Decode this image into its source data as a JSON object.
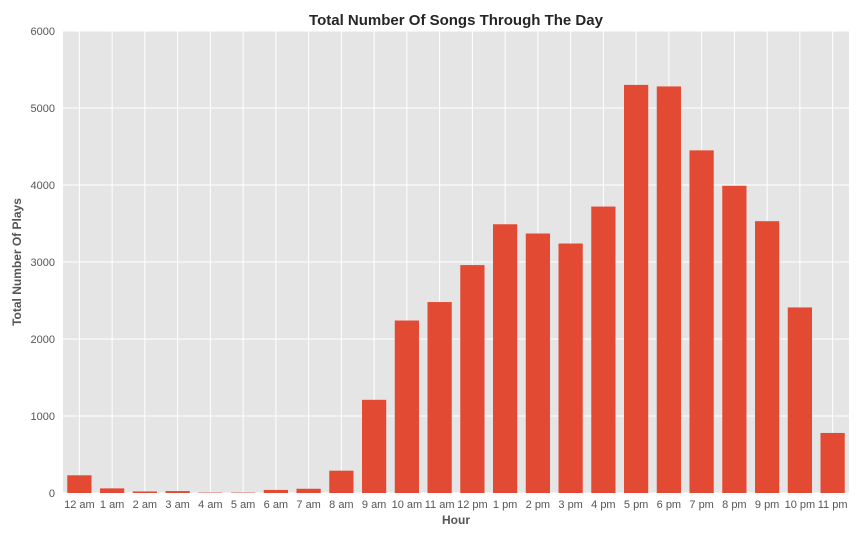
{
  "colors": {
    "plot_background": "#e5e5e5",
    "grid": "#ffffff",
    "bar": "#e24a33"
  },
  "chart_data": {
    "type": "bar",
    "title": "Total Number Of Songs Through The Day",
    "xlabel": "Hour",
    "ylabel": "Total Number Of Plays",
    "categories": [
      "12 am",
      "1 am",
      "2 am",
      "3 am",
      "4 am",
      "5 am",
      "6 am",
      "7 am",
      "8 am",
      "9 am",
      "10 am",
      "11 am",
      "12 pm",
      "1 pm",
      "2 pm",
      "3 pm",
      "4 pm",
      "5 pm",
      "6 pm",
      "7 pm",
      "8 pm",
      "9 pm",
      "10 pm",
      "11 pm"
    ],
    "values": [
      230,
      60,
      20,
      25,
      5,
      5,
      40,
      55,
      290,
      1210,
      2240,
      2480,
      2960,
      3490,
      3370,
      3240,
      3720,
      5300,
      5280,
      4450,
      3990,
      3530,
      2410,
      780
    ],
    "ylim": [
      0,
      6000
    ],
    "yticks": [
      0,
      1000,
      2000,
      3000,
      4000,
      5000,
      6000
    ],
    "grid": true,
    "legend": "none"
  }
}
